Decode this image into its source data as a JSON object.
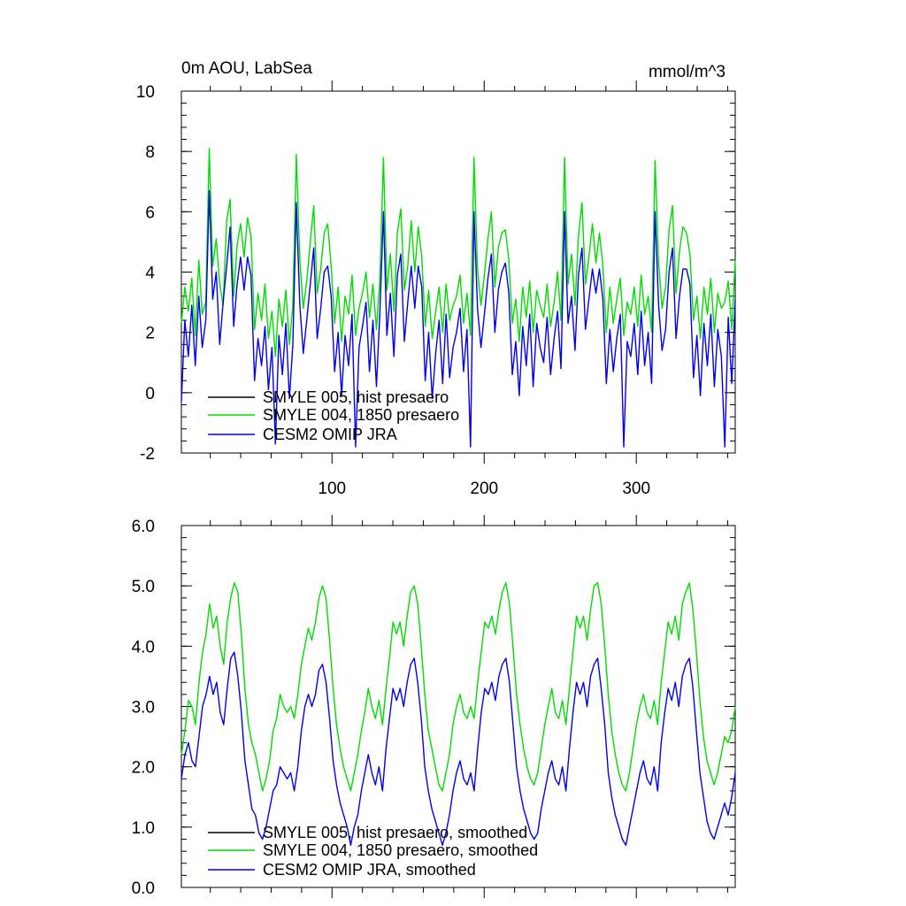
{
  "chart_data": [
    {
      "type": "line",
      "title": "0m AOU, LabSea",
      "units": "mmol/m^3",
      "xlabel": "",
      "ylabel": "",
      "xlim": [
        1,
        365
      ],
      "ylim": [
        -2,
        10
      ],
      "yticks": [
        -2,
        0,
        2,
        4,
        6,
        8,
        10
      ],
      "ytick_labels": [
        "-2",
        "0",
        "2",
        "4",
        "6",
        "8",
        "10"
      ],
      "xticks": [
        100,
        200,
        300
      ],
      "xtick_labels": [
        "100",
        "200",
        "300"
      ],
      "legend": [
        {
          "label": "SMYLE 005, hist presaero",
          "color": "#000000"
        },
        {
          "label": "SMYLE 004, 1850 presaero",
          "color": "#00dd00"
        },
        {
          "label": "CESM2 OMIP JRA",
          "color": "#0000ee"
        }
      ],
      "series": [
        {
          "name": "SMYLE 005, hist presaero",
          "color": "#000000",
          "values": []
        },
        {
          "name": "SMYLE 004, 1850 presaero",
          "color": "#00dd00",
          "values": [
            2.3,
            3.5,
            2.7,
            3.8,
            1.9,
            4.4,
            2.6,
            3.0,
            8.1,
            4.2,
            5.1,
            3.6,
            2.9,
            5.7,
            6.4,
            3.2,
            4.9,
            5.6,
            4.5,
            5.8,
            5.2,
            2.1,
            3.3,
            2.4,
            3.6,
            1.8,
            2.7,
            1.2,
            3.1,
            2.2,
            3.4,
            1.6,
            2.9,
            7.9,
            4.4,
            2.8,
            3.7,
            5.0,
            6.2,
            3.3,
            4.1,
            5.3,
            5.6,
            4.2,
            2.3,
            3.5,
            1.7,
            3.2,
            2.6,
            3.9,
            1.9,
            2.8,
            3.3,
            4.0,
            2.5,
            3.6,
            2.1,
            3.8,
            7.8,
            3.4,
            4.6,
            2.7,
            5.3,
            6.1,
            3.4,
            4.2,
            5.7,
            4.0,
            5.5,
            4.5,
            2.2,
            3.4,
            1.8,
            2.7,
            3.5,
            2.0,
            3.6,
            2.4,
            2.9,
            3.2,
            3.9,
            2.3,
            3.3,
            1.9,
            7.8,
            4.1,
            2.9,
            3.9,
            5.1,
            6.0,
            3.5,
            4.8,
            5.3,
            5.4,
            4.4,
            2.3,
            3.1,
            1.7,
            3.5,
            2.5,
            3.7,
            2.0,
            3.4,
            2.9,
            2.5,
            3.6,
            2.2,
            3.0,
            4.0,
            2.4,
            7.8,
            3.6,
            4.6,
            2.9,
            5.2,
            6.3,
            3.6,
            4.5,
            5.6,
            4.3,
            5.3,
            4.2,
            2.0,
            3.5,
            2.3,
            3.1,
            3.8,
            1.9,
            3.0,
            2.6,
            3.5,
            2.2,
            3.9,
            2.6,
            3.2,
            2.0,
            7.7,
            4.3,
            2.8,
            3.5,
            5.4,
            6.2,
            3.3,
            4.7,
            5.5,
            5.3,
            4.6,
            2.4,
            3.2,
            1.8,
            3.5,
            2.6,
            3.8,
            2.0,
            3.3,
            2.8,
            3.0,
            3.7,
            2.1,
            4.4
          ]
        },
        {
          "name": "CESM2 OMIP JRA",
          "color": "#0000ee",
          "values": [
            -0.3,
            2.4,
            1.2,
            2.9,
            0.9,
            3.2,
            1.5,
            2.4,
            6.7,
            3.1,
            4.0,
            1.6,
            3.0,
            4.2,
            5.5,
            2.2,
            3.6,
            4.5,
            3.4,
            4.5,
            3.9,
            0.4,
            1.8,
            0.9,
            2.2,
            0.1,
            1.5,
            -1.7,
            1.9,
            0.6,
            2.3,
            -0.2,
            1.6,
            6.3,
            2.9,
            1.3,
            2.4,
            3.6,
            4.8,
            1.8,
            2.8,
            4.0,
            4.2,
            3.2,
            0.7,
            2.0,
            -0.1,
            1.9,
            0.9,
            2.6,
            -1.8,
            1.5,
            2.2,
            3.0,
            0.7,
            2.4,
            0.2,
            2.7,
            6.0,
            1.9,
            3.3,
            1.2,
            3.9,
            4.6,
            1.7,
            3.0,
            4.2,
            2.8,
            4.2,
            3.5,
            0.4,
            2.0,
            -0.2,
            1.3,
            2.4,
            0.3,
            2.6,
            0.5,
            1.5,
            2.0,
            2.8,
            0.7,
            2.1,
            -1.8,
            6.0,
            2.8,
            1.5,
            2.6,
            3.8,
            4.6,
            2.0,
            3.4,
            4.0,
            4.3,
            3.3,
            0.6,
            1.7,
            -0.1,
            2.2,
            0.9,
            2.6,
            0.2,
            2.3,
            1.5,
            1.0,
            2.5,
            0.6,
            1.8,
            2.7,
            0.8,
            6.0,
            2.3,
            3.2,
            1.4,
            3.9,
            4.8,
            2.1,
            3.1,
            4.1,
            3.3,
            4.1,
            3.1,
            0.3,
            2.1,
            0.7,
            1.8,
            2.6,
            -1.8,
            1.7,
            1.2,
            2.3,
            0.6,
            2.7,
            0.9,
            2.0,
            0.3,
            6.0,
            2.9,
            1.4,
            2.1,
            4.0,
            4.8,
            1.8,
            3.2,
            4.1,
            4.1,
            3.6,
            0.5,
            1.9,
            -0.1,
            2.3,
            0.9,
            2.6,
            0.2,
            2.1,
            1.2,
            -1.8,
            2.5,
            0.3,
            3.1
          ]
        }
      ]
    },
    {
      "type": "line",
      "title": "",
      "xlabel": "",
      "ylabel": "",
      "xlim": [
        1,
        365
      ],
      "ylim": [
        0,
        6
      ],
      "yticks": [
        0,
        1,
        2,
        3,
        4,
        5,
        6
      ],
      "ytick_labels": [
        "0.0",
        "1.0",
        "2.0",
        "3.0",
        "4.0",
        "5.0",
        "6.0"
      ],
      "xticks": [
        100,
        200,
        300
      ],
      "xtick_labels": [],
      "legend": [
        {
          "label": "SMYLE 005, hist presaero, smoothed",
          "color": "#000000"
        },
        {
          "label": "SMYLE 004, 1850 presaero, smoothed",
          "color": "#00dd00"
        },
        {
          "label": "CESM2 OMIP JRA, smoothed",
          "color": "#0000ee"
        }
      ],
      "series": [
        {
          "name": "SMYLE 005, hist presaero, smoothed",
          "color": "#000000",
          "values": []
        },
        {
          "name": "SMYLE 004, 1850 presaero, smoothed",
          "color": "#00dd00",
          "values": [
            2.2,
            2.6,
            3.1,
            3.0,
            2.7,
            3.4,
            3.9,
            4.2,
            4.7,
            4.3,
            4.5,
            4.0,
            3.7,
            4.4,
            4.8,
            5.05,
            4.9,
            4.2,
            3.3,
            2.7,
            2.4,
            2.2,
            1.9,
            1.6,
            1.8,
            2.1,
            2.6,
            2.8,
            3.2,
            3.0,
            2.9,
            3.0,
            2.8,
            3.2,
            3.7,
            4.0,
            4.3,
            4.1,
            4.4,
            4.8,
            5.0,
            4.8,
            4.1,
            3.3,
            2.7,
            2.3,
            2.0,
            1.8,
            1.6,
            1.9,
            2.2,
            2.6,
            2.9,
            3.3,
            3.0,
            2.8,
            3.1,
            2.7,
            3.3,
            3.8,
            4.4,
            4.2,
            4.4,
            4.0,
            4.5,
            4.9,
            5.0,
            4.7,
            4.0,
            3.2,
            2.6,
            2.3,
            2.0,
            1.7,
            1.6,
            1.9,
            2.2,
            2.7,
            3.0,
            3.2,
            2.9,
            2.8,
            3.0,
            2.8,
            3.4,
            3.9,
            4.4,
            4.3,
            4.5,
            4.2,
            4.6,
            4.9,
            5.05,
            4.7,
            4.0,
            3.2,
            2.7,
            2.3,
            2.0,
            1.8,
            1.7,
            1.9,
            2.3,
            2.7,
            3.0,
            3.3,
            2.9,
            2.8,
            3.1,
            2.7,
            3.3,
            3.9,
            4.5,
            4.3,
            4.5,
            4.1,
            4.6,
            5.0,
            5.05,
            4.7,
            4.0,
            3.2,
            2.6,
            2.2,
            1.9,
            1.7,
            1.6,
            1.9,
            2.3,
            2.7,
            3.0,
            3.2,
            2.9,
            2.8,
            3.1,
            2.7,
            3.4,
            3.9,
            4.4,
            4.2,
            4.5,
            4.1,
            4.7,
            4.9,
            5.05,
            4.6,
            3.9,
            3.1,
            2.5,
            2.1,
            1.9,
            1.7,
            1.9,
            2.2,
            2.5,
            2.4,
            2.6,
            3.0
          ]
        },
        {
          "name": "CESM2 OMIP JRA, smoothed",
          "color": "#0000ee",
          "values": [
            1.8,
            2.2,
            2.4,
            2.1,
            2.0,
            2.5,
            3.0,
            3.2,
            3.5,
            3.2,
            3.4,
            2.9,
            2.7,
            3.3,
            3.8,
            3.9,
            3.5,
            2.9,
            2.1,
            1.7,
            1.3,
            1.2,
            0.9,
            0.8,
            1.0,
            1.3,
            1.6,
            1.7,
            2.0,
            1.9,
            1.8,
            1.9,
            1.6,
            2.0,
            2.6,
            3.0,
            3.2,
            3.0,
            3.2,
            3.6,
            3.7,
            3.4,
            2.8,
            2.1,
            1.7,
            1.4,
            1.2,
            1.0,
            0.7,
            1.0,
            1.2,
            1.6,
            1.9,
            2.2,
            1.9,
            1.7,
            2.0,
            1.6,
            2.3,
            2.8,
            3.3,
            3.1,
            3.3,
            3.0,
            3.4,
            3.7,
            3.8,
            3.4,
            2.8,
            2.0,
            1.6,
            1.3,
            1.1,
            0.9,
            0.7,
            0.9,
            1.2,
            1.6,
            1.9,
            2.1,
            1.8,
            1.7,
            1.9,
            1.6,
            2.3,
            2.9,
            3.3,
            3.2,
            3.4,
            3.1,
            3.5,
            3.7,
            3.8,
            3.4,
            2.7,
            2.0,
            1.6,
            1.3,
            1.1,
            0.9,
            0.8,
            0.9,
            1.3,
            1.6,
            1.9,
            2.1,
            1.8,
            1.7,
            2.0,
            1.6,
            2.3,
            2.9,
            3.4,
            3.2,
            3.4,
            3.0,
            3.5,
            3.7,
            3.8,
            3.3,
            2.7,
            1.9,
            1.5,
            1.2,
            1.0,
            0.8,
            0.7,
            1.0,
            1.3,
            1.6,
            1.9,
            2.1,
            1.8,
            1.7,
            2.0,
            1.6,
            2.4,
            2.9,
            3.3,
            3.1,
            3.4,
            3.0,
            3.5,
            3.7,
            3.8,
            3.3,
            2.6,
            1.9,
            1.5,
            1.1,
            0.9,
            0.8,
            1.0,
            1.2,
            1.4,
            1.2,
            1.5,
            1.9
          ]
        }
      ]
    }
  ]
}
